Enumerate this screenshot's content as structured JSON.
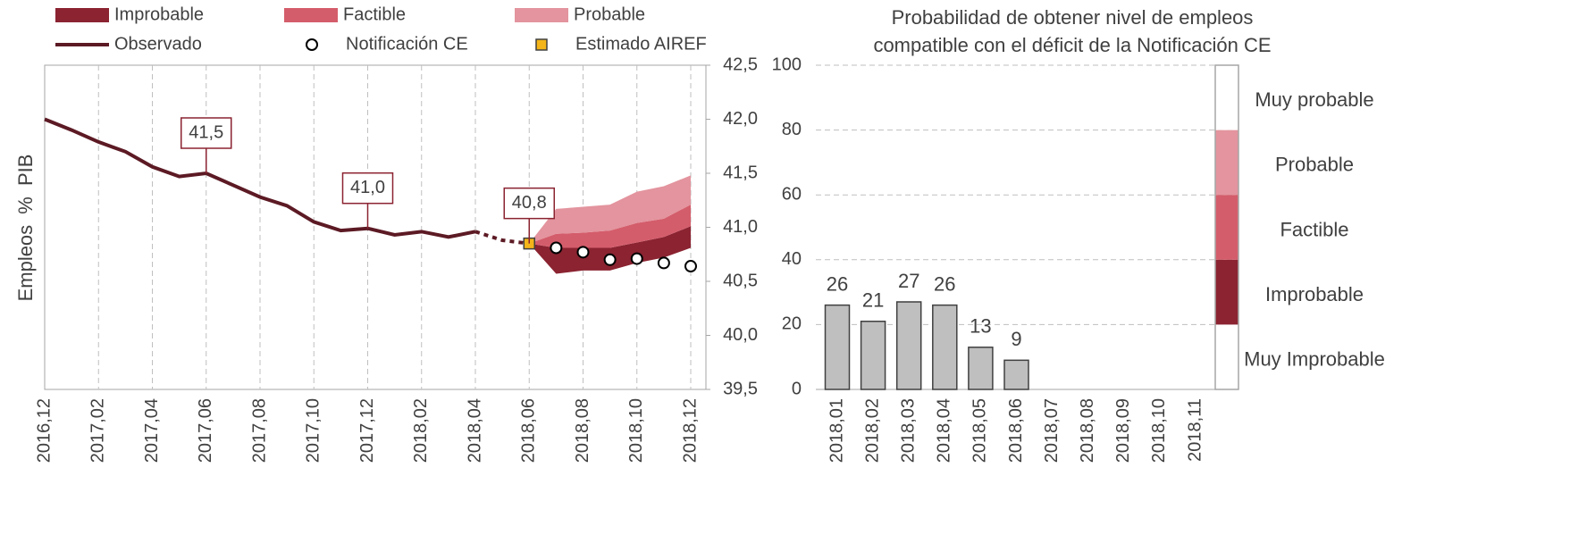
{
  "chart_data": [
    {
      "type": "line",
      "y_label": "Empleos    % PIB",
      "categories": [
        "2016,12",
        null,
        "2017,02",
        null,
        "2017,04",
        null,
        "2017,06",
        null,
        "2017,08",
        null,
        "2017,10",
        null,
        "2017,12",
        null,
        "2018,02",
        null,
        "2018,04",
        null,
        "2018,06",
        null,
        "2018,08",
        null,
        "2018,10",
        null,
        "2018,12"
      ],
      "ylim": [
        39.5,
        42.5
      ],
      "yticks": [
        {
          "value": 39.5,
          "label": "39,5"
        },
        {
          "value": 40.0,
          "label": "40,0"
        },
        {
          "value": 40.5,
          "label": "40,5"
        },
        {
          "value": 41.0,
          "label": "41,0"
        },
        {
          "value": 41.5,
          "label": "41,5"
        },
        {
          "value": 42.0,
          "label": "42,0"
        },
        {
          "value": 42.5,
          "label": "42,5"
        }
      ],
      "grid": true,
      "series": [
        {
          "name": "Improbable",
          "kind": "band",
          "color": "#8b2331",
          "low": [
            null,
            null,
            null,
            null,
            null,
            null,
            null,
            null,
            null,
            null,
            null,
            null,
            null,
            null,
            null,
            null,
            null,
            null,
            40.85,
            40.57,
            40.6,
            40.6,
            40.67,
            40.72,
            40.81
          ],
          "high": [
            null,
            null,
            null,
            null,
            null,
            null,
            null,
            null,
            null,
            null,
            null,
            null,
            null,
            null,
            null,
            null,
            null,
            null,
            40.85,
            40.81,
            40.81,
            40.81,
            40.86,
            40.91,
            41.01
          ]
        },
        {
          "name": "Factible",
          "kind": "band",
          "color": "#d45d6b",
          "low": [
            null,
            null,
            null,
            null,
            null,
            null,
            null,
            null,
            null,
            null,
            null,
            null,
            null,
            null,
            null,
            null,
            null,
            null,
            40.85,
            40.81,
            40.81,
            40.81,
            40.86,
            40.91,
            41.01
          ],
          "high": [
            null,
            null,
            null,
            null,
            null,
            null,
            null,
            null,
            null,
            null,
            null,
            null,
            null,
            null,
            null,
            null,
            null,
            null,
            40.85,
            40.94,
            40.95,
            40.97,
            41.04,
            41.08,
            41.21
          ]
        },
        {
          "name": "Probable",
          "kind": "band",
          "color": "#e3949e",
          "low": [
            null,
            null,
            null,
            null,
            null,
            null,
            null,
            null,
            null,
            null,
            null,
            null,
            null,
            null,
            null,
            null,
            null,
            null,
            40.85,
            40.94,
            40.95,
            40.97,
            41.04,
            41.08,
            41.21
          ],
          "high": [
            null,
            null,
            null,
            null,
            null,
            null,
            null,
            null,
            null,
            null,
            null,
            null,
            null,
            null,
            null,
            null,
            null,
            null,
            40.85,
            41.17,
            41.19,
            41.21,
            41.33,
            41.38,
            41.48
          ]
        },
        {
          "name": "Observado",
          "kind": "line",
          "color": "#5c1a24",
          "dashed_after": "2018,04",
          "values": [
            42.0,
            41.9,
            41.79,
            41.7,
            41.56,
            41.47,
            41.5,
            41.39,
            41.28,
            41.2,
            41.05,
            40.97,
            40.99,
            40.93,
            40.96,
            40.91,
            40.96,
            40.88,
            40.85,
            null,
            null,
            null,
            null,
            null,
            null
          ]
        },
        {
          "name": "Notificación CE",
          "kind": "points",
          "marker": "circle",
          "color": "#ffffff",
          "values": [
            null,
            null,
            null,
            null,
            null,
            null,
            null,
            null,
            null,
            null,
            null,
            null,
            null,
            null,
            null,
            null,
            null,
            null,
            null,
            40.81,
            40.77,
            40.7,
            40.71,
            40.67,
            40.64
          ]
        },
        {
          "name": "Estimado AIREF",
          "kind": "points",
          "marker": "square",
          "color": "#f3b51a",
          "values": [
            null,
            null,
            null,
            null,
            null,
            null,
            null,
            null,
            null,
            null,
            null,
            null,
            null,
            null,
            null,
            null,
            null,
            null,
            40.85,
            null,
            null,
            null,
            null,
            null,
            null
          ]
        }
      ],
      "annotations": [
        {
          "label": "41,5",
          "category": "2017,06"
        },
        {
          "label": "41,0",
          "category": "2017,12"
        },
        {
          "label": "40,8",
          "category": "2018,06"
        }
      ]
    },
    {
      "type": "bar",
      "title": [
        "Probabilidad de obtener nivel de empleos",
        "compatible con el déficit de la Notificación CE"
      ],
      "categories": [
        "2018,01",
        "2018,02",
        "2018,03",
        "2018,04",
        "2018,05",
        "2018,06",
        "2018,07",
        "2018,08",
        "2018,09",
        "2018,10",
        "2018,11"
      ],
      "values": [
        26,
        21,
        27,
        26,
        13,
        9,
        null,
        null,
        null,
        null,
        null
      ],
      "color": "#bfbfbf",
      "ylim": [
        0,
        100
      ],
      "yticks": [
        0,
        20,
        40,
        60,
        80,
        100
      ],
      "grid": true,
      "scale": [
        {
          "label": "Muy Improbable",
          "from": 0,
          "to": 20,
          "color": "#ffffff"
        },
        {
          "label": "Improbable",
          "from": 20,
          "to": 40,
          "color": "#8b2331"
        },
        {
          "label": "Factible",
          "from": 40,
          "to": 60,
          "color": "#d45d6b"
        },
        {
          "label": "Probable",
          "from": 60,
          "to": 80,
          "color": "#e3949e"
        },
        {
          "label": "Muy probable",
          "from": 80,
          "to": 100,
          "color": "#ffffff"
        }
      ]
    }
  ]
}
